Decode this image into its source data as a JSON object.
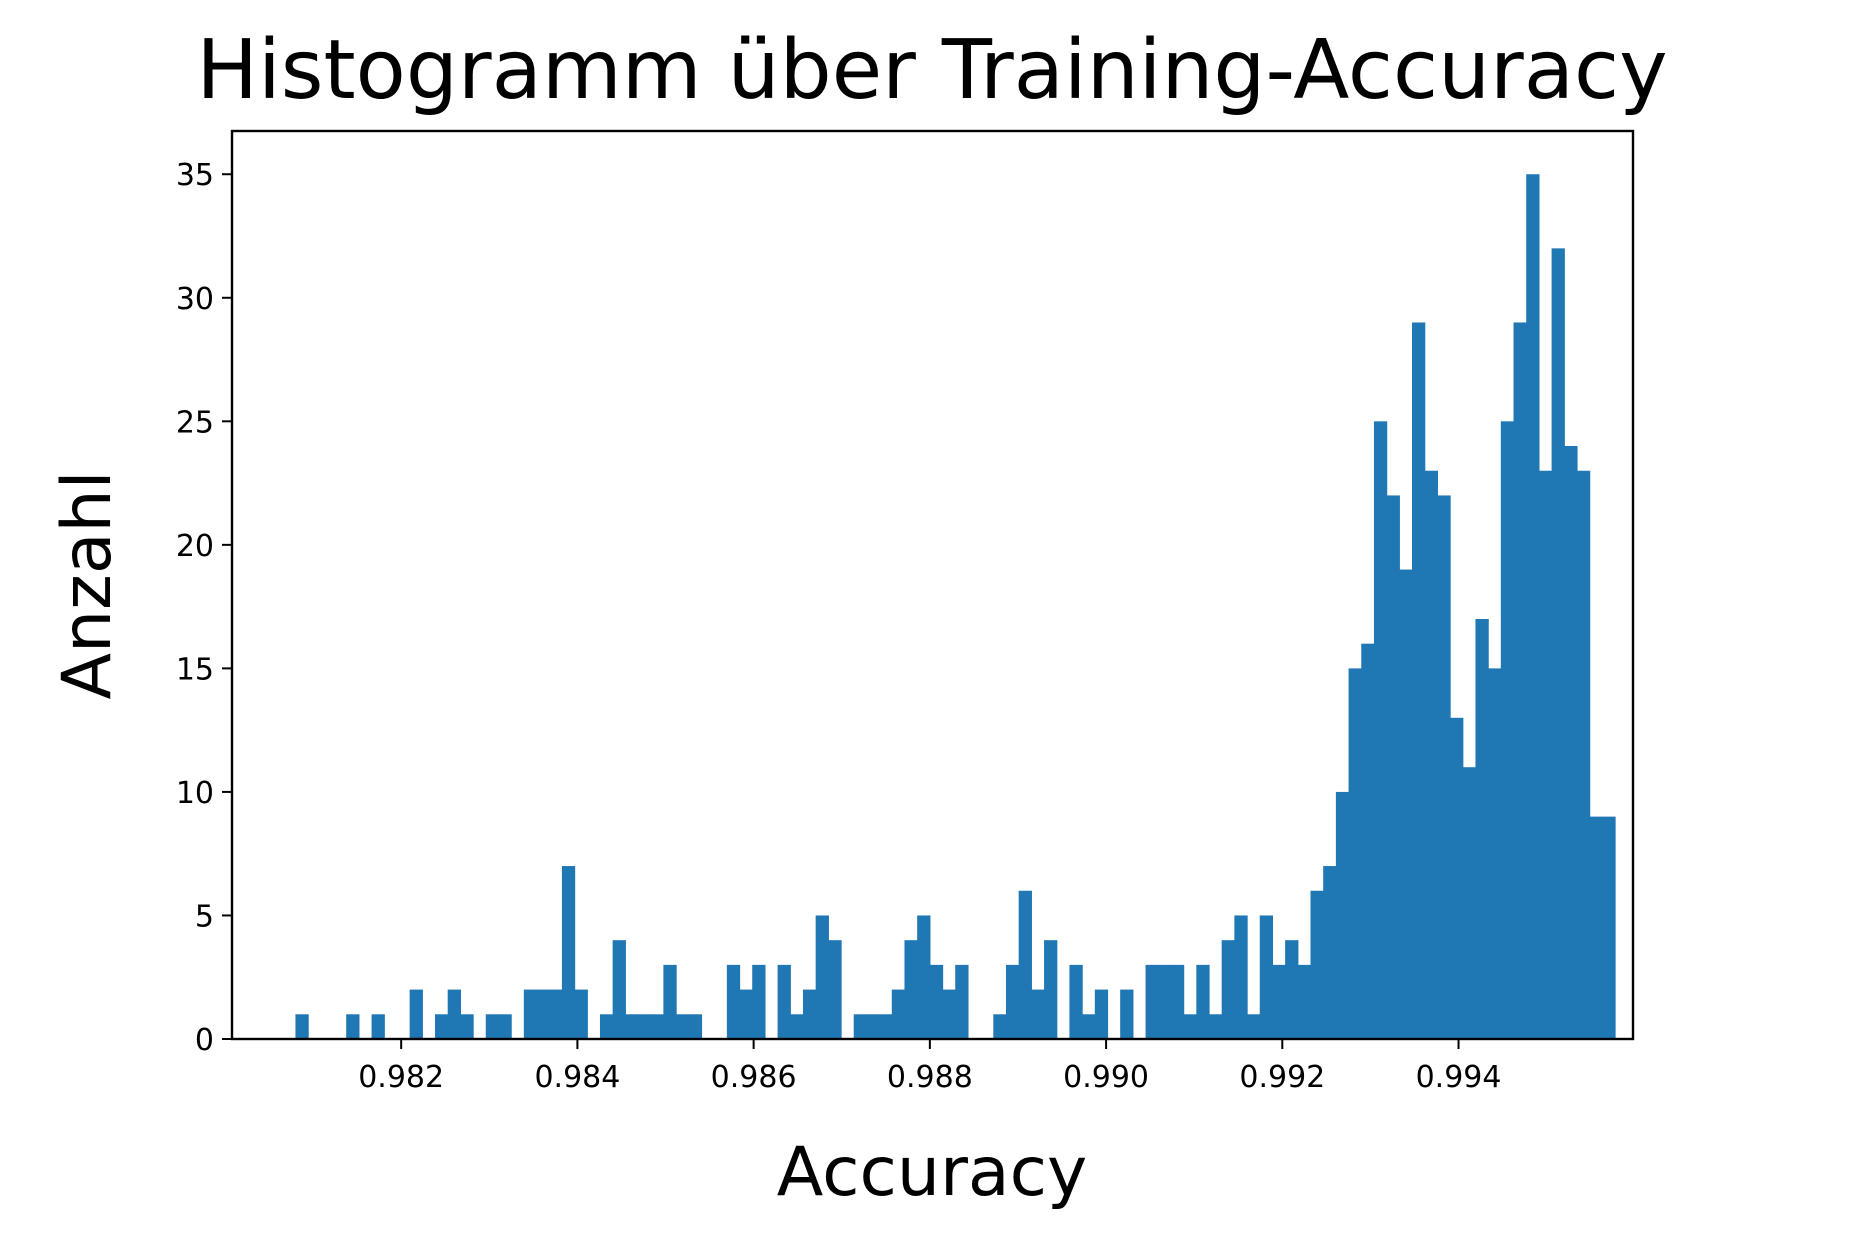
{
  "chart_data": {
    "type": "bar",
    "title": "Histogramm über Training-Accuracy",
    "xlabel": "Accuracy",
    "ylabel": "Anzahl",
    "xlim": [
      0.98008,
      0.99598
    ],
    "ylim": [
      0,
      36.75
    ],
    "xticks": [
      0.982,
      0.984,
      0.986,
      0.988,
      0.99,
      0.992,
      0.994
    ],
    "xtick_labels": [
      "0.982",
      "0.984",
      "0.986",
      "0.988",
      "0.990",
      "0.992",
      "0.994"
    ],
    "yticks": [
      0,
      5,
      10,
      15,
      20,
      25,
      30,
      35
    ],
    "ytick_labels": [
      "0",
      "5",
      "10",
      "15",
      "20",
      "25",
      "30",
      "35"
    ],
    "grid": false,
    "bar_color": "#1f77b4",
    "bin_start": 0.9808,
    "bin_width": 0.000144,
    "counts": [
      1,
      0,
      0,
      0,
      1,
      0,
      1,
      0,
      0,
      2,
      0,
      1,
      2,
      1,
      0,
      1,
      1,
      0,
      2,
      2,
      2,
      7,
      2,
      0,
      1,
      4,
      1,
      1,
      1,
      3,
      1,
      1,
      0,
      0,
      3,
      2,
      3,
      0,
      3,
      1,
      2,
      5,
      4,
      0,
      1,
      1,
      1,
      2,
      4,
      5,
      3,
      2,
      3,
      0,
      0,
      1,
      3,
      6,
      2,
      4,
      0,
      3,
      1,
      2,
      0,
      2,
      0,
      3,
      3,
      3,
      1,
      3,
      1,
      4,
      5,
      1,
      5,
      3,
      4,
      3,
      6,
      7,
      10,
      15,
      16,
      25,
      22,
      19,
      29,
      23,
      22,
      13,
      11,
      17,
      15,
      25,
      29,
      35,
      23,
      32,
      24,
      23,
      9,
      9
    ]
  }
}
